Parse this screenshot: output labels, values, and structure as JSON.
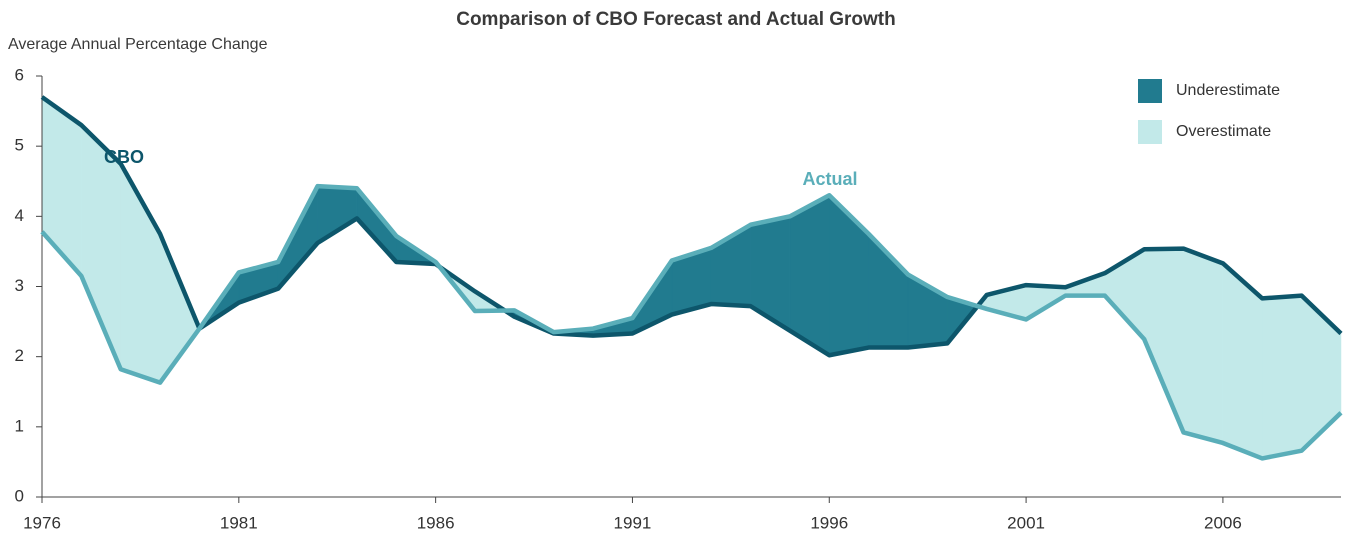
{
  "chart_data": {
    "type": "line",
    "title": "Comparison of CBO Forecast and Actual Growth",
    "y_label": "Average Annual Percentage Change",
    "x": [
      1976,
      1977,
      1978,
      1979,
      1980,
      1981,
      1982,
      1983,
      1984,
      1985,
      1986,
      1987,
      1988,
      1989,
      1990,
      1991,
      1992,
      1993,
      1994,
      1995,
      1996,
      1997,
      1998,
      1999,
      2000,
      2001,
      2002,
      2003,
      2004,
      2005,
      2006,
      2007,
      2008,
      2009
    ],
    "series": [
      {
        "name": "CBO",
        "color": "#0d566b",
        "values": [
          5.7,
          5.3,
          4.75,
          3.75,
          2.4,
          2.77,
          2.97,
          3.62,
          3.97,
          3.35,
          3.32,
          2.93,
          2.57,
          2.33,
          2.3,
          2.33,
          2.6,
          2.75,
          2.72,
          2.37,
          2.02,
          2.13,
          2.13,
          2.19,
          2.88,
          3.02,
          2.99,
          3.19,
          3.53,
          3.54,
          3.33,
          2.83,
          2.87,
          2.33
        ]
      },
      {
        "name": "Actual",
        "color": "#5aaeb9",
        "values": [
          3.78,
          3.15,
          1.82,
          1.63,
          2.4,
          3.2,
          3.35,
          4.43,
          4.4,
          3.72,
          3.35,
          2.65,
          2.66,
          2.35,
          2.4,
          2.55,
          3.37,
          3.55,
          3.88,
          4.0,
          4.3,
          3.75,
          3.17,
          2.85,
          2.68,
          2.53,
          2.87,
          2.87,
          2.25,
          0.92,
          0.77,
          0.55,
          0.66,
          1.2
        ]
      }
    ],
    "fills": [
      {
        "name": "Underestimate",
        "color": "#217b8f"
      },
      {
        "name": "Overestimate",
        "color": "#c2e9e9"
      }
    ],
    "xlim": [
      1976,
      2009
    ],
    "xticks": [
      1976,
      1981,
      1986,
      1991,
      1996,
      2001,
      2006
    ],
    "ylim": [
      0,
      6
    ],
    "yticks": [
      0,
      1,
      2,
      3,
      4,
      5,
      6
    ]
  }
}
